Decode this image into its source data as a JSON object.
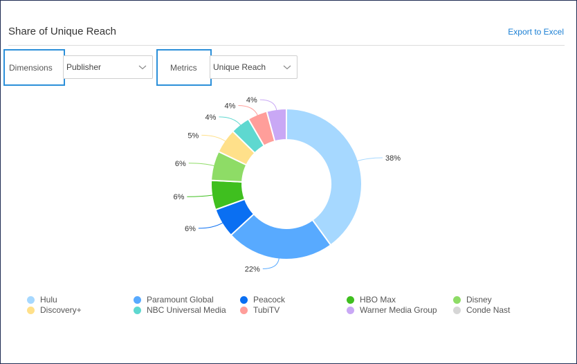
{
  "header": {
    "title": "Share of Unique Reach",
    "export_label": "Export to Excel"
  },
  "controls": {
    "dimensions_label": "Dimensions",
    "dimensions_value": "Publisher",
    "metrics_label": "Metrics",
    "metrics_value": "Unique Reach"
  },
  "chart_data": {
    "type": "pie",
    "donut": true,
    "legend_position": "bottom",
    "slices": [
      {
        "name": "Hulu",
        "value": 38,
        "label": "38%",
        "color": "#a6d8ff"
      },
      {
        "name": "Paramount Global",
        "value": 22,
        "label": "22%",
        "color": "#58aaff"
      },
      {
        "name": "Peacock",
        "value": 6,
        "label": "6%",
        "color": "#0a6ff2"
      },
      {
        "name": "HBO Max",
        "value": 6,
        "label": "6%",
        "color": "#3fbf1f"
      },
      {
        "name": "Disney",
        "value": 6,
        "label": "6%",
        "color": "#8edc66"
      },
      {
        "name": "Discovery+",
        "value": 5,
        "label": "5%",
        "color": "#ffe08a"
      },
      {
        "name": "NBC Universal Media",
        "value": 4,
        "label": "4%",
        "color": "#5ed8d0"
      },
      {
        "name": "TubiTV",
        "value": 4,
        "label": "4%",
        "color": "#ff9e9a"
      },
      {
        "name": "Warner Media Group",
        "value": 4,
        "label": "4%",
        "color": "#c9a8f5"
      },
      {
        "name": "Conde Nast",
        "value": 0,
        "label": "",
        "color": "#d6d6d6"
      }
    ]
  }
}
